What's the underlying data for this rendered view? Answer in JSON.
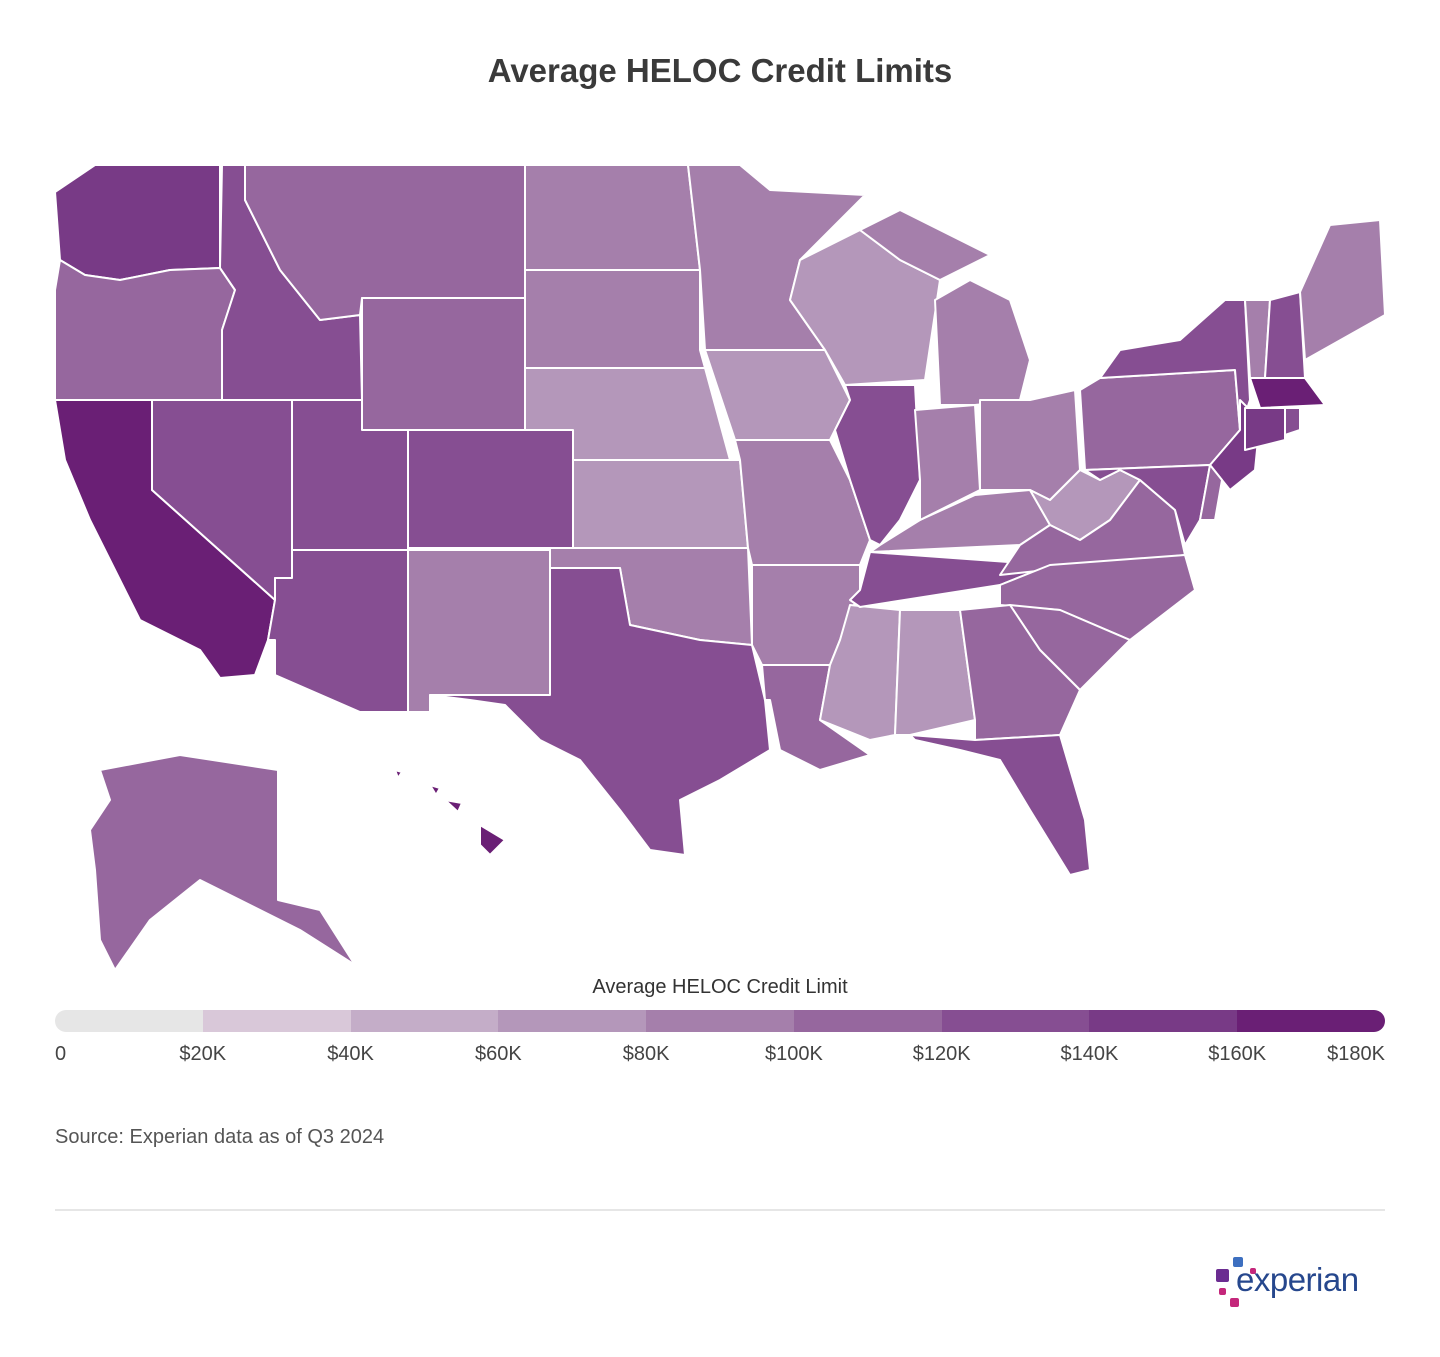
{
  "title": "Average HELOC Credit Limits",
  "legend": {
    "title": "Average HELOC Credit Limit",
    "ticks": [
      "0",
      "$20K",
      "$40K",
      "$60K",
      "$80K",
      "$100K",
      "$120K",
      "$140K",
      "$160K",
      "$180K"
    ],
    "colors": [
      "#e6e6e6",
      "#d9c8d9",
      "#c4adc8",
      "#b497ba",
      "#a57fab",
      "#96679e",
      "#864e92",
      "#783a86",
      "#6a1f75"
    ]
  },
  "source": "Source: Experian data as of Q3 2024",
  "logo": {
    "text": "experian",
    "colors": {
      "blue": "#3d6fc0",
      "purple": "#6b2c91",
      "magenta": "#c4277b",
      "text": "#26478d"
    }
  },
  "chart_data": {
    "type": "choropleth",
    "title": "Average HELOC Credit Limits",
    "legend_title": "Average HELOC Credit Limit",
    "scale": {
      "min": 0,
      "max": 180000,
      "step": 20000,
      "unit": "USD"
    },
    "states": [
      {
        "state": "WA",
        "value": 150000
      },
      {
        "state": "OR",
        "value": 110000
      },
      {
        "state": "CA",
        "value": 170000
      },
      {
        "state": "NV",
        "value": 130000
      },
      {
        "state": "ID",
        "value": 130000
      },
      {
        "state": "MT",
        "value": 110000
      },
      {
        "state": "WY",
        "value": 110000
      },
      {
        "state": "UT",
        "value": 130000
      },
      {
        "state": "CO",
        "value": 130000
      },
      {
        "state": "AZ",
        "value": 130000
      },
      {
        "state": "NM",
        "value": 90000
      },
      {
        "state": "ND",
        "value": 90000
      },
      {
        "state": "SD",
        "value": 90000
      },
      {
        "state": "NE",
        "value": 70000
      },
      {
        "state": "KS",
        "value": 70000
      },
      {
        "state": "OK",
        "value": 90000
      },
      {
        "state": "TX",
        "value": 130000
      },
      {
        "state": "MN",
        "value": 90000
      },
      {
        "state": "IA",
        "value": 70000
      },
      {
        "state": "MO",
        "value": 90000
      },
      {
        "state": "AR",
        "value": 90000
      },
      {
        "state": "LA",
        "value": 110000
      },
      {
        "state": "WI",
        "value": 70000
      },
      {
        "state": "IL",
        "value": 130000
      },
      {
        "state": "MS",
        "value": 70000
      },
      {
        "state": "AL",
        "value": 70000
      },
      {
        "state": "TN",
        "value": 130000
      },
      {
        "state": "KY",
        "value": 90000
      },
      {
        "state": "IN",
        "value": 90000
      },
      {
        "state": "MI",
        "value": 90000
      },
      {
        "state": "OH",
        "value": 90000
      },
      {
        "state": "WV",
        "value": 70000
      },
      {
        "state": "VA",
        "value": 110000
      },
      {
        "state": "NC",
        "value": 110000
      },
      {
        "state": "SC",
        "value": 110000
      },
      {
        "state": "GA",
        "value": 110000
      },
      {
        "state": "FL",
        "value": 130000
      },
      {
        "state": "PA",
        "value": 110000
      },
      {
        "state": "NY",
        "value": 130000
      },
      {
        "state": "NJ",
        "value": 150000
      },
      {
        "state": "MD",
        "value": 130000
      },
      {
        "state": "DE",
        "value": 110000
      },
      {
        "state": "VT",
        "value": 90000
      },
      {
        "state": "NH",
        "value": 130000
      },
      {
        "state": "ME",
        "value": 90000
      },
      {
        "state": "MA",
        "value": 170000
      },
      {
        "state": "CT",
        "value": 150000
      },
      {
        "state": "RI",
        "value": 130000
      },
      {
        "state": "AK",
        "value": 110000
      },
      {
        "state": "HI",
        "value": 170000
      }
    ]
  }
}
